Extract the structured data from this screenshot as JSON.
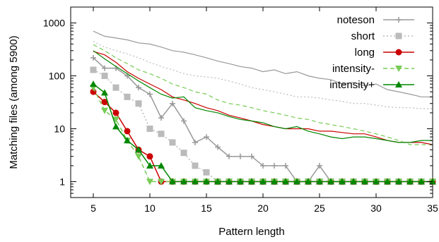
{
  "chart_data": {
    "type": "line",
    "title": "",
    "xlabel": "Pattern length",
    "ylabel": "Matching files (among 5900)",
    "xlim": [
      3,
      35
    ],
    "ylim": [
      0.5,
      2000
    ],
    "yscale": "log",
    "grid": false,
    "legend_position": "top-right",
    "x_ticks": [
      5,
      10,
      15,
      20,
      25,
      30,
      35
    ],
    "y_ticks": [
      1,
      10,
      100,
      1000
    ],
    "series": [
      {
        "name": "noteson",
        "color": "#999999",
        "style": "solid",
        "marker": "plus",
        "upper_values": [
          700,
          560,
          520,
          480,
          420,
          400,
          350,
          300,
          280,
          250,
          220,
          190,
          170,
          150,
          140,
          120,
          130,
          110,
          120,
          100,
          90,
          85,
          70,
          75,
          65,
          70,
          55,
          50,
          45,
          40,
          40
        ],
        "values": [
          220,
          140,
          140,
          100,
          60,
          45,
          16,
          30,
          14,
          5.5,
          7,
          4.5,
          3,
          3,
          3,
          2,
          2,
          2,
          1,
          1,
          2,
          1,
          1,
          1,
          1,
          1,
          1,
          1,
          1,
          1,
          1
        ]
      },
      {
        "name": "short",
        "color": "#bbbbbb",
        "style": "dotted",
        "marker": "square",
        "upper_values": [
          450,
          350,
          300,
          260,
          220,
          180,
          150,
          130,
          110,
          100,
          95,
          90,
          80,
          70,
          60,
          55,
          50,
          45,
          40,
          40,
          38,
          35,
          33,
          30,
          30,
          28,
          26,
          25,
          25,
          24,
          24
        ],
        "values": [
          130,
          100,
          60,
          40,
          30,
          10,
          8,
          5.5,
          3.5,
          2,
          1.5,
          1,
          1,
          1,
          1,
          1,
          1,
          1,
          1,
          1,
          1,
          1,
          1,
          1,
          1,
          1,
          1,
          1,
          1,
          1,
          1
        ]
      },
      {
        "name": "long",
        "color": "#cc0000",
        "style": "solid",
        "marker": "circle",
        "upper_values": [
          290,
          250,
          180,
          120,
          90,
          70,
          55,
          40,
          35,
          30,
          25,
          22,
          18,
          16,
          14,
          12,
          11,
          10,
          10,
          10,
          9,
          9,
          8.5,
          8,
          8,
          7,
          6,
          5.5,
          5.5,
          5.5,
          5
        ],
        "values": [
          50,
          32,
          20,
          9,
          4,
          3,
          1,
          1,
          1,
          1,
          1,
          1,
          1,
          1,
          1,
          1,
          1,
          1,
          1,
          1,
          1,
          1,
          1,
          1,
          1,
          1,
          1,
          1,
          1,
          1,
          1
        ]
      },
      {
        "name": "intensity-",
        "color": "#77cc55",
        "style": "dashed",
        "marker": "triangle-down",
        "upper_values": [
          390,
          300,
          220,
          170,
          130,
          110,
          90,
          70,
          60,
          50,
          45,
          35,
          30,
          28,
          25,
          22,
          20,
          18,
          16,
          15,
          13,
          12,
          11,
          10,
          9,
          8,
          7,
          6,
          5,
          5,
          5
        ],
        "values": [
          60,
          22,
          15,
          6,
          3,
          1,
          1,
          1,
          1,
          1,
          1,
          1,
          1,
          1,
          1,
          1,
          1,
          1,
          1,
          1,
          1,
          1,
          1,
          1,
          1,
          1,
          1,
          1,
          1,
          1,
          1
        ]
      },
      {
        "name": "intensity+",
        "color": "#008800",
        "style": "solid",
        "marker": "triangle-up",
        "upper_values": [
          300,
          210,
          150,
          110,
          80,
          60,
          45,
          38,
          40,
          25,
          22,
          20,
          17,
          15,
          14,
          13,
          11,
          10,
          11,
          9,
          8,
          7,
          6.5,
          7,
          7,
          6.5,
          6,
          5.5,
          5.5,
          6,
          6
        ],
        "values": [
          70,
          48,
          11,
          6,
          4,
          2,
          2,
          1,
          1,
          1,
          1,
          1,
          1,
          1,
          1,
          1,
          1,
          1,
          1,
          1,
          1,
          1,
          1,
          1,
          1,
          1,
          1,
          1,
          1,
          1,
          1
        ]
      }
    ],
    "x": [
      5,
      6,
      7,
      8,
      9,
      10,
      11,
      12,
      13,
      14,
      15,
      16,
      17,
      18,
      19,
      20,
      21,
      22,
      23,
      24,
      25,
      26,
      27,
      28,
      29,
      30,
      31,
      32,
      33,
      34,
      35
    ]
  }
}
